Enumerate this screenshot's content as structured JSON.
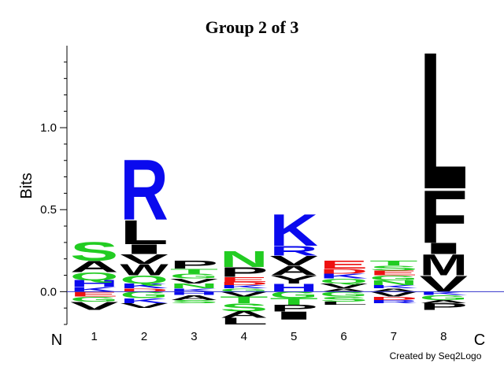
{
  "chart_data": {
    "type": "logo",
    "title": "Group 2 of 3",
    "y_label": "Bits",
    "ylim": [
      -0.2,
      1.5
    ],
    "yticks": [
      {
        "value": 0,
        "label": "0.0"
      },
      {
        "value": 0.5,
        "label": "0.5"
      },
      {
        "value": 1,
        "label": "1.0"
      }
    ],
    "yminor": [
      -0.2,
      -0.1,
      0.1,
      0.2,
      0.3,
      0.4,
      0.6,
      0.7,
      0.8,
      0.9,
      1.1,
      1.2,
      1.3,
      1.4
    ],
    "xlim": [
      0.5,
      8.5
    ],
    "start_label": "N",
    "end_label": "C",
    "credit": "Created by Seq2Logo",
    "zero_line_color": "#3333cc",
    "letter_colors": {
      "A": "#000000",
      "V": "#000000",
      "L": "#000000",
      "I": "#000000",
      "M": "#000000",
      "F": "#000000",
      "W": "#000000",
      "P": "#000000",
      "Y": "#000000",
      "S": "#22cc22",
      "T": "#22cc22",
      "N": "#22cc22",
      "Q": "#22cc22",
      "G": "#22cc22",
      "K": "#0a0aee",
      "R": "#0a0aee",
      "H": "#0a0aee",
      "D": "#ee1111",
      "E": "#ee1111"
    },
    "positions": [
      {
        "x": 1,
        "positive": [
          {
            "letter": "K",
            "bits": 0.03
          },
          {
            "letter": "H",
            "bits": 0.04
          },
          {
            "letter": "Q",
            "bits": 0.05
          },
          {
            "letter": "A",
            "bits": 0.07
          },
          {
            "letter": "S",
            "bits": 0.12
          }
        ],
        "negative": [
          {
            "letter": "E",
            "bits": 0.03
          },
          {
            "letter": "G",
            "bits": 0.03
          },
          {
            "letter": "V",
            "bits": 0.05
          }
        ]
      },
      {
        "x": 2,
        "positive": [
          {
            "letter": "D",
            "bits": 0.02
          },
          {
            "letter": "K",
            "bits": 0.03
          },
          {
            "letter": "Q",
            "bits": 0.05
          },
          {
            "letter": "W",
            "bits": 0.07
          },
          {
            "letter": "V",
            "bits": 0.06
          },
          {
            "letter": "I",
            "bits": 0.06
          },
          {
            "letter": "L",
            "bits": 0.15
          },
          {
            "letter": "R",
            "bits": 0.38
          }
        ],
        "negative": [
          {
            "letter": "G",
            "bits": 0.04
          },
          {
            "letter": "K",
            "bits": 0.03
          },
          {
            "letter": "V",
            "bits": 0.03
          }
        ]
      },
      {
        "x": 3,
        "positive": [
          {
            "letter": "K",
            "bits": 0.02
          },
          {
            "letter": "N",
            "bits": 0.03
          },
          {
            "letter": "V",
            "bits": 0.03
          },
          {
            "letter": "G",
            "bits": 0.03
          },
          {
            "letter": "T",
            "bits": 0.03
          },
          {
            "letter": "P",
            "bits": 0.05
          }
        ],
        "negative": [
          {
            "letter": "H",
            "bits": 0.02
          },
          {
            "letter": "A",
            "bits": 0.03
          },
          {
            "letter": "S",
            "bits": 0.02
          }
        ]
      },
      {
        "x": 4,
        "positive": [
          {
            "letter": "G",
            "bits": 0.02
          },
          {
            "letter": "K",
            "bits": 0.02
          },
          {
            "letter": "D",
            "bits": 0.02
          },
          {
            "letter": "E",
            "bits": 0.03
          },
          {
            "letter": "P",
            "bits": 0.06
          },
          {
            "letter": "N",
            "bits": 0.1
          }
        ],
        "negative": [
          {
            "letter": "V",
            "bits": 0.03
          },
          {
            "letter": "T",
            "bits": 0.04
          },
          {
            "letter": "S",
            "bits": 0.05
          },
          {
            "letter": "A",
            "bits": 0.04
          },
          {
            "letter": "L",
            "bits": 0.04
          }
        ]
      },
      {
        "x": 5,
        "positive": [
          {
            "letter": "H",
            "bits": 0.05
          },
          {
            "letter": "Y",
            "bits": 0.05
          },
          {
            "letter": "A",
            "bits": 0.06
          },
          {
            "letter": "V",
            "bits": 0.06
          },
          {
            "letter": "R",
            "bits": 0.06
          },
          {
            "letter": "K",
            "bits": 0.2
          }
        ],
        "negative": [
          {
            "letter": "G",
            "bits": 0.04
          },
          {
            "letter": "T",
            "bits": 0.04
          },
          {
            "letter": "P",
            "bits": 0.04
          },
          {
            "letter": "I",
            "bits": 0.05
          }
        ]
      },
      {
        "x": 6,
        "positive": [
          {
            "letter": "A",
            "bits": 0.02
          },
          {
            "letter": "V",
            "bits": 0.03
          },
          {
            "letter": "Q",
            "bits": 0.03
          },
          {
            "letter": "K",
            "bits": 0.03
          },
          {
            "letter": "D",
            "bits": 0.03
          },
          {
            "letter": "E",
            "bits": 0.05
          }
        ],
        "negative": [
          {
            "letter": "G",
            "bits": 0.03
          },
          {
            "letter": "S",
            "bits": 0.03
          },
          {
            "letter": "L",
            "bits": 0.02
          }
        ]
      },
      {
        "x": 7,
        "positive": [
          {
            "letter": "A",
            "bits": 0.02
          },
          {
            "letter": "K",
            "bits": 0.02
          },
          {
            "letter": "N",
            "bits": 0.03
          },
          {
            "letter": "G",
            "bits": 0.03
          },
          {
            "letter": "E",
            "bits": 0.03
          },
          {
            "letter": "S",
            "bits": 0.03
          },
          {
            "letter": "T",
            "bits": 0.03
          }
        ],
        "negative": [
          {
            "letter": "V",
            "bits": 0.03
          },
          {
            "letter": "D",
            "bits": 0.02
          },
          {
            "letter": "R",
            "bits": 0.02
          }
        ]
      },
      {
        "x": 8,
        "positive": [
          {
            "letter": "V",
            "bits": 0.1
          },
          {
            "letter": "M",
            "bits": 0.13
          },
          {
            "letter": "I",
            "bits": 0.07
          },
          {
            "letter": "F",
            "bits": 0.33
          },
          {
            "letter": "L",
            "bits": 0.86
          }
        ],
        "negative": [
          {
            "letter": "K",
            "bits": 0.02
          },
          {
            "letter": "G",
            "bits": 0.03
          },
          {
            "letter": "A",
            "bits": 0.02
          },
          {
            "letter": "P",
            "bits": 0.04
          }
        ]
      }
    ]
  }
}
